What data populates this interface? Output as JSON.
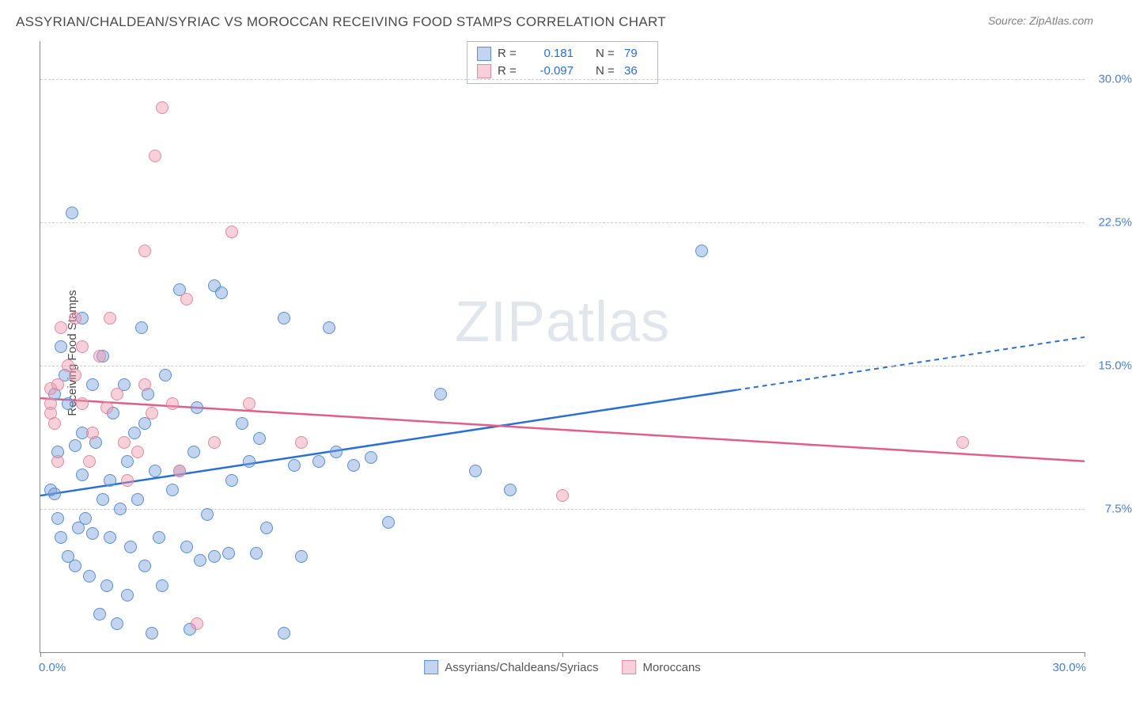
{
  "title": "ASSYRIAN/CHALDEAN/SYRIAC VS MOROCCAN RECEIVING FOOD STAMPS CORRELATION CHART",
  "source": "Source: ZipAtlas.com",
  "watermark": "ZIPatlas",
  "y_axis_label": "Receiving Food Stamps",
  "chart": {
    "type": "scatter",
    "xlim": [
      0,
      30
    ],
    "ylim": [
      0,
      32
    ],
    "x_ticks": [
      0,
      15,
      30
    ],
    "y_ticks": [
      7.5,
      15.0,
      22.5,
      30.0
    ],
    "y_tick_labels": [
      "7.5%",
      "15.0%",
      "22.5%",
      "30.0%"
    ],
    "x_tick_labels": [
      "0.0%",
      "30.0%"
    ],
    "grid_color": "#cccccc",
    "background_color": "#ffffff",
    "axis_color": "#888888",
    "point_radius": 8,
    "series": [
      {
        "name": "Assyrians/Chaldeans/Syriacs",
        "fill": "rgba(120,160,220,0.45)",
        "stroke": "#5a8fd0",
        "line_color": "#2a6fd6",
        "R": "0.181",
        "N": "79",
        "trend": {
          "x1": 0,
          "y1": 8.2,
          "x2": 30,
          "y2": 16.5,
          "solid_until_x": 20
        },
        "points": [
          [
            0.3,
            8.5
          ],
          [
            0.4,
            8.3
          ],
          [
            0.4,
            13.5
          ],
          [
            0.5,
            10.5
          ],
          [
            0.5,
            7.0
          ],
          [
            0.6,
            6.0
          ],
          [
            0.6,
            16.0
          ],
          [
            0.7,
            14.5
          ],
          [
            0.8,
            5.0
          ],
          [
            0.8,
            13.0
          ],
          [
            0.9,
            23.0
          ],
          [
            1.0,
            4.5
          ],
          [
            1.0,
            10.8
          ],
          [
            1.1,
            6.5
          ],
          [
            1.2,
            9.3
          ],
          [
            1.2,
            17.5
          ],
          [
            1.3,
            7.0
          ],
          [
            1.4,
            4.0
          ],
          [
            1.5,
            14.0
          ],
          [
            1.5,
            6.2
          ],
          [
            1.6,
            11.0
          ],
          [
            1.7,
            2.0
          ],
          [
            1.8,
            15.5
          ],
          [
            1.9,
            3.5
          ],
          [
            2.0,
            9.0
          ],
          [
            2.0,
            6.0
          ],
          [
            2.1,
            12.5
          ],
          [
            2.2,
            1.5
          ],
          [
            2.3,
            7.5
          ],
          [
            2.4,
            14.0
          ],
          [
            2.5,
            10.0
          ],
          [
            2.5,
            3.0
          ],
          [
            2.6,
            5.5
          ],
          [
            2.8,
            8.0
          ],
          [
            2.9,
            17.0
          ],
          [
            3.0,
            4.5
          ],
          [
            3.0,
            12.0
          ],
          [
            3.2,
            1.0
          ],
          [
            3.3,
            9.5
          ],
          [
            3.4,
            6.0
          ],
          [
            3.5,
            3.5
          ],
          [
            3.6,
            14.5
          ],
          [
            3.8,
            8.5
          ],
          [
            4.0,
            19.0
          ],
          [
            4.0,
            9.5
          ],
          [
            4.2,
            5.5
          ],
          [
            4.3,
            1.2
          ],
          [
            4.5,
            12.8
          ],
          [
            4.6,
            4.8
          ],
          [
            4.8,
            7.2
          ],
          [
            5.0,
            19.2
          ],
          [
            5.0,
            5.0
          ],
          [
            5.2,
            18.8
          ],
          [
            5.4,
            5.2
          ],
          [
            5.5,
            9.0
          ],
          [
            6.0,
            10.0
          ],
          [
            6.2,
            5.2
          ],
          [
            6.3,
            11.2
          ],
          [
            6.5,
            6.5
          ],
          [
            7.0,
            1.0
          ],
          [
            7.0,
            17.5
          ],
          [
            7.3,
            9.8
          ],
          [
            7.5,
            5.0
          ],
          [
            8.0,
            10.0
          ],
          [
            8.3,
            17.0
          ],
          [
            8.5,
            10.5
          ],
          [
            9.0,
            9.8
          ],
          [
            9.5,
            10.2
          ],
          [
            10.0,
            6.8
          ],
          [
            11.5,
            13.5
          ],
          [
            12.5,
            9.5
          ],
          [
            13.5,
            8.5
          ],
          [
            19.0,
            21.0
          ],
          [
            1.2,
            11.5
          ],
          [
            1.8,
            8.0
          ],
          [
            2.7,
            11.5
          ],
          [
            3.1,
            13.5
          ],
          [
            4.4,
            10.5
          ],
          [
            5.8,
            12.0
          ]
        ]
      },
      {
        "name": "Moroccans",
        "fill": "rgba(240,150,170,0.45)",
        "stroke": "#e08aa0",
        "line_color": "#e35d8a",
        "R": "-0.097",
        "N": "36",
        "trend": {
          "x1": 0,
          "y1": 13.3,
          "x2": 30,
          "y2": 10.0,
          "solid_until_x": 30
        },
        "points": [
          [
            0.3,
            13.0
          ],
          [
            0.3,
            12.5
          ],
          [
            0.3,
            13.8
          ],
          [
            0.4,
            12.0
          ],
          [
            0.5,
            10.0
          ],
          [
            0.5,
            14.0
          ],
          [
            0.6,
            17.0
          ],
          [
            0.8,
            15.0
          ],
          [
            1.0,
            14.5
          ],
          [
            1.0,
            17.5
          ],
          [
            1.2,
            13.0
          ],
          [
            1.2,
            16.0
          ],
          [
            1.4,
            10.0
          ],
          [
            1.5,
            11.5
          ],
          [
            1.7,
            15.5
          ],
          [
            1.9,
            12.8
          ],
          [
            2.0,
            17.5
          ],
          [
            2.2,
            13.5
          ],
          [
            2.4,
            11.0
          ],
          [
            2.5,
            9.0
          ],
          [
            2.8,
            10.5
          ],
          [
            3.0,
            14.0
          ],
          [
            3.0,
            21.0
          ],
          [
            3.2,
            12.5
          ],
          [
            3.3,
            26.0
          ],
          [
            3.5,
            28.5
          ],
          [
            3.8,
            13.0
          ],
          [
            4.0,
            9.5
          ],
          [
            4.2,
            18.5
          ],
          [
            4.5,
            1.5
          ],
          [
            5.0,
            11.0
          ],
          [
            5.5,
            22.0
          ],
          [
            6.0,
            13.0
          ],
          [
            7.5,
            11.0
          ],
          [
            15.0,
            8.2
          ],
          [
            26.5,
            11.0
          ]
        ]
      }
    ]
  },
  "legend_top": [
    {
      "swatch_fill": "rgba(120,160,220,0.45)",
      "swatch_stroke": "#5a8fd0",
      "R_label": "R =",
      "R": "0.181",
      "N_label": "N =",
      "N": "79"
    },
    {
      "swatch_fill": "rgba(240,150,170,0.45)",
      "swatch_stroke": "#e08aa0",
      "R_label": "R =",
      "R": "-0.097",
      "N_label": "N =",
      "N": "36"
    }
  ],
  "legend_bottom": [
    {
      "swatch_fill": "rgba(120,160,220,0.45)",
      "swatch_stroke": "#5a8fd0",
      "label": "Assyrians/Chaldeans/Syriacs"
    },
    {
      "swatch_fill": "rgba(240,150,170,0.45)",
      "swatch_stroke": "#e08aa0",
      "label": "Moroccans"
    }
  ]
}
